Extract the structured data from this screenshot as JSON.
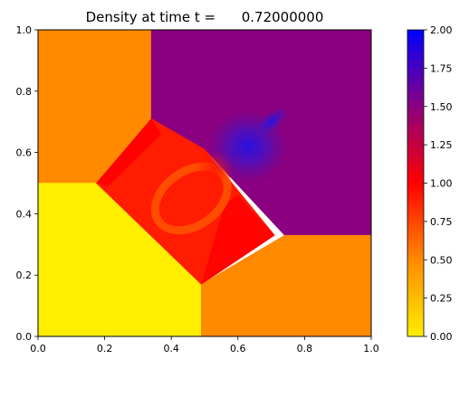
{
  "chart_data": {
    "type": "heatmap",
    "title": "Density at time t =      0.72000000",
    "xlabel": "",
    "ylabel": "",
    "xlim": [
      0,
      1
    ],
    "ylim": [
      0,
      1
    ],
    "xticks": [
      "0.0",
      "0.2",
      "0.4",
      "0.6",
      "0.8",
      "1.0"
    ],
    "yticks": [
      "0.0",
      "0.2",
      "0.4",
      "0.6",
      "0.8",
      "1.0"
    ],
    "colorbar": {
      "range": [
        0,
        2
      ],
      "ticks": [
        "0.00",
        "0.25",
        "0.50",
        "0.75",
        "1.00",
        "1.25",
        "1.50",
        "1.75",
        "2.00"
      ],
      "colors": [
        {
          "value": 0.0,
          "color": "#ffee00"
        },
        {
          "value": 0.5,
          "color": "#ff8a00"
        },
        {
          "value": 1.0,
          "color": "#ff0000"
        },
        {
          "value": 1.5,
          "color": "#8a0080"
        },
        {
          "value": 2.0,
          "color": "#0000ff"
        }
      ]
    },
    "regions": [
      {
        "name": "top-left",
        "density": 0.5,
        "polygon": [
          [
            0,
            1
          ],
          [
            0.34,
            1
          ],
          [
            0.34,
            0.71
          ],
          [
            0.175,
            0.5
          ],
          [
            0,
            0.5
          ]
        ]
      },
      {
        "name": "top-right",
        "density": 1.5,
        "polygon": [
          [
            0.34,
            1
          ],
          [
            1,
            1
          ],
          [
            1,
            0.33
          ],
          [
            0.74,
            0.33
          ],
          [
            0.5,
            0.61
          ],
          [
            0.34,
            0.71
          ]
        ]
      },
      {
        "name": "bottom-left",
        "density": 0.0,
        "polygon": [
          [
            0,
            0.5
          ],
          [
            0.175,
            0.5
          ],
          [
            0.49,
            0.17
          ],
          [
            0.49,
            0
          ],
          [
            0,
            0
          ]
        ]
      },
      {
        "name": "bottom-right",
        "density": 0.5,
        "polygon": [
          [
            0.49,
            0
          ],
          [
            1,
            0
          ],
          [
            1,
            0.33
          ],
          [
            0.74,
            0.33
          ],
          [
            0.49,
            0.17
          ]
        ]
      },
      {
        "name": "center-diamond",
        "density": 0.9,
        "polygon": [
          [
            0.175,
            0.5
          ],
          [
            0.34,
            0.71
          ],
          [
            0.5,
            0.61
          ],
          [
            0.71,
            0.33
          ],
          [
            0.49,
            0.17
          ]
        ]
      }
    ],
    "features": [
      {
        "name": "blue-jet",
        "x": 0.63,
        "y": 0.62,
        "density": 1.95
      },
      {
        "name": "swirl-ring",
        "x": 0.46,
        "y": 0.45,
        "density": 0.65
      }
    ]
  }
}
